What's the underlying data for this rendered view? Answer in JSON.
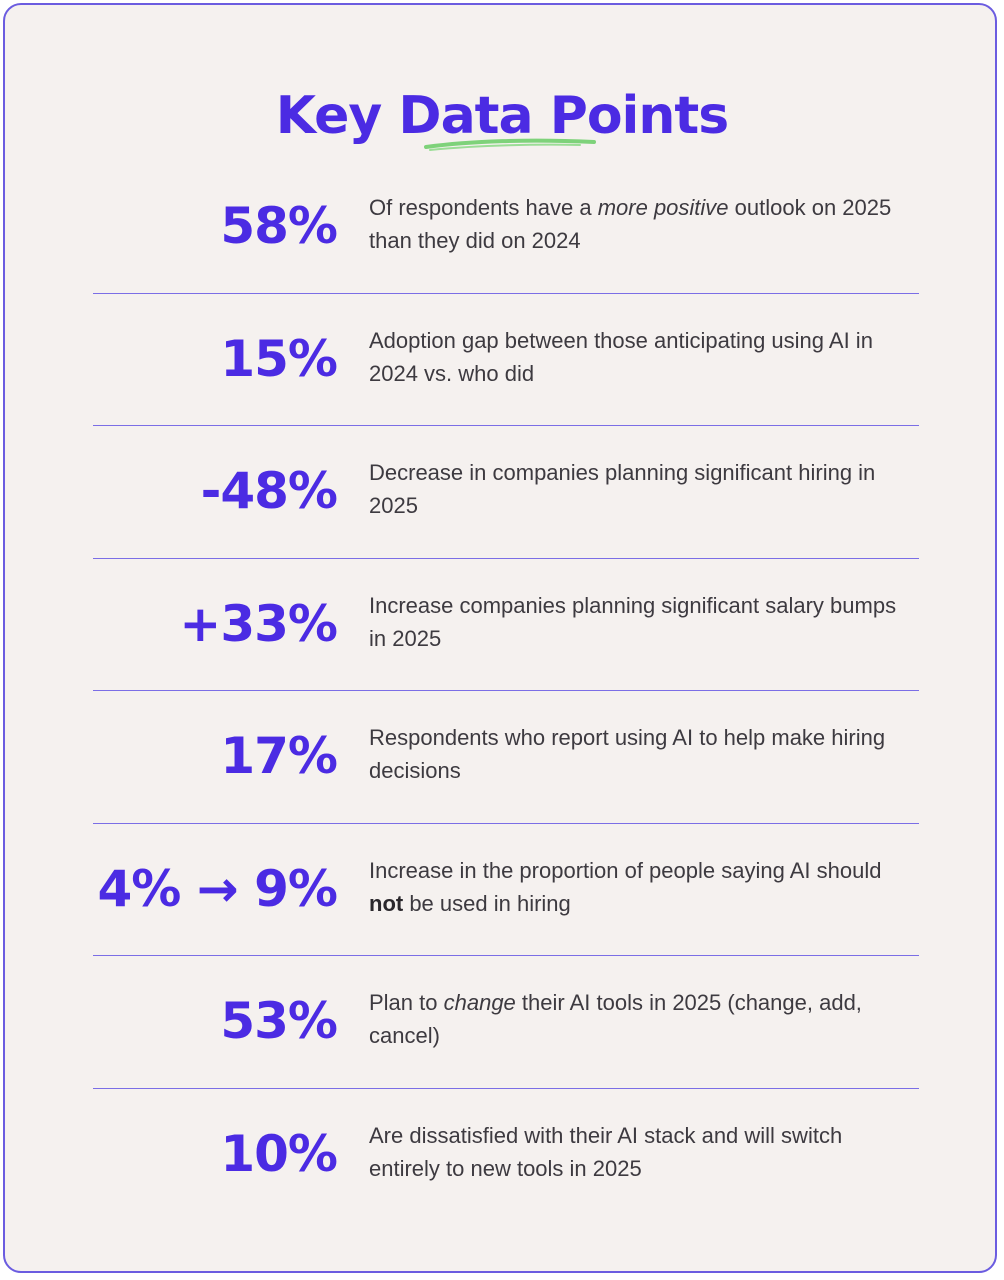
{
  "title": "Key Data Points",
  "accent_color": "#4b2be3",
  "underline_color": "#7ed27a",
  "items": [
    {
      "stat": "58%",
      "desc_before": "Of respondents have a ",
      "desc_emph": "more positive",
      "desc_after": " outlook on 2025 than they did on 2024"
    },
    {
      "stat": "15%",
      "desc": "Adoption gap between those anticipating using AI in 2024 vs. who did"
    },
    {
      "stat": "-48%",
      "desc": "Decrease in companies planning significant hiring in 2025"
    },
    {
      "stat": "+33%",
      "desc": "Increase companies planning significant salary bumps in 2025"
    },
    {
      "stat": "17%",
      "desc": "Respondents who report using AI to help make hiring decisions"
    },
    {
      "stat": "4% → 9%",
      "desc_before": "Increase in the proportion of people saying AI should ",
      "desc_bold": "not",
      "desc_after": " be used in hiring"
    },
    {
      "stat": "53%",
      "desc_before": "Plan to ",
      "desc_emph": "change",
      "desc_after": " their AI tools in 2025 (change, add, cancel)"
    },
    {
      "stat": "10%",
      "desc": "Are dissatisfied with their AI stack and will switch entirely to new tools in 2025"
    }
  ]
}
